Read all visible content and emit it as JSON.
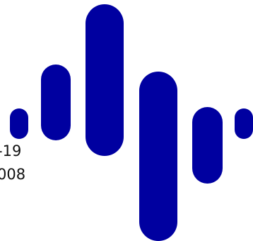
{
  "colors": {
    "bar": "#0000A0",
    "text": "#111111",
    "background": "#ffffff"
  },
  "text_lines": [
    "-19",
    "008"
  ]
}
